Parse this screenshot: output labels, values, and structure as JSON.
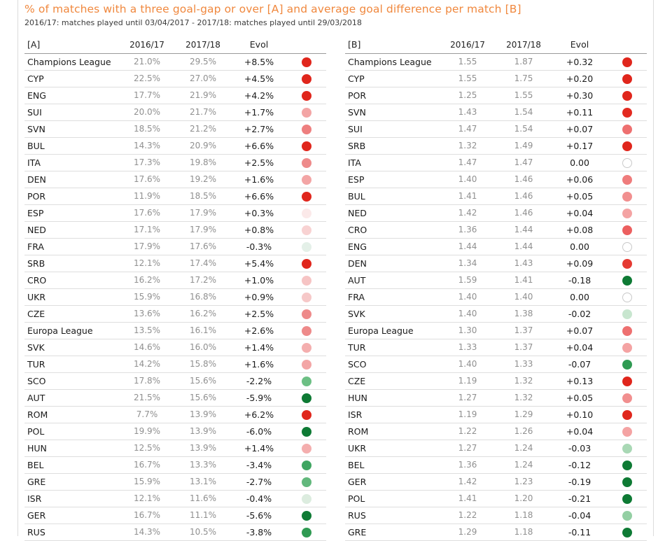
{
  "title": "% of matches with a three goal-gap or over [A] and average goal difference per match [B]",
  "subtitle": "2016/17: matches played until 03/04/2017 - 2017/18: matches played until 29/03/2018",
  "chart_data": [
    {
      "type": "table",
      "columns": [
        "[A]",
        "2016/17",
        "2017/18",
        "Evol",
        ""
      ],
      "rows": [
        {
          "name": "Champions League",
          "v1": "21.0%",
          "v2": "29.5%",
          "evol": "+8.5%",
          "color": "#e0261c"
        },
        {
          "name": "CYP",
          "v1": "22.5%",
          "v2": "27.0%",
          "evol": "+4.5%",
          "color": "#e0261c"
        },
        {
          "name": "ENG",
          "v1": "17.7%",
          "v2": "21.9%",
          "evol": "+4.2%",
          "color": "#e0261c"
        },
        {
          "name": "SUI",
          "v1": "20.0%",
          "v2": "21.7%",
          "evol": "+1.7%",
          "color": "#f3a5a5"
        },
        {
          "name": "SVN",
          "v1": "18.5%",
          "v2": "21.2%",
          "evol": "+2.7%",
          "color": "#ee7f7f"
        },
        {
          "name": "BUL",
          "v1": "14.3%",
          "v2": "20.9%",
          "evol": "+6.6%",
          "color": "#e0261c"
        },
        {
          "name": "ITA",
          "v1": "17.3%",
          "v2": "19.8%",
          "evol": "+2.5%",
          "color": "#ee8a8a"
        },
        {
          "name": "DEN",
          "v1": "17.6%",
          "v2": "19.2%",
          "evol": "+1.6%",
          "color": "#f3a5a5"
        },
        {
          "name": "POR",
          "v1": "11.9%",
          "v2": "18.5%",
          "evol": "+6.6%",
          "color": "#e0261c"
        },
        {
          "name": "ESP",
          "v1": "17.6%",
          "v2": "17.9%",
          "evol": "+0.3%",
          "color": "#fbe9e9"
        },
        {
          "name": "NED",
          "v1": "17.1%",
          "v2": "17.9%",
          "evol": "+0.8%",
          "color": "#f8d2d2"
        },
        {
          "name": "FRA",
          "v1": "17.9%",
          "v2": "17.6%",
          "evol": "-0.3%",
          "color": "#e4f0e8"
        },
        {
          "name": "SRB",
          "v1": "12.1%",
          "v2": "17.4%",
          "evol": "+5.4%",
          "color": "#e0261c"
        },
        {
          "name": "CRO",
          "v1": "16.2%",
          "v2": "17.2%",
          "evol": "+1.0%",
          "color": "#f6c4c4"
        },
        {
          "name": "UKR",
          "v1": "15.9%",
          "v2": "16.8%",
          "evol": "+0.9%",
          "color": "#f6c8c8"
        },
        {
          "name": "CZE",
          "v1": "13.6%",
          "v2": "16.2%",
          "evol": "+2.5%",
          "color": "#ee8a8a"
        },
        {
          "name": "Europa League",
          "v1": "13.5%",
          "v2": "16.1%",
          "evol": "+2.6%",
          "color": "#ee8a8a"
        },
        {
          "name": "SVK",
          "v1": "14.6%",
          "v2": "16.0%",
          "evol": "+1.4%",
          "color": "#f4aeae"
        },
        {
          "name": "TUR",
          "v1": "14.2%",
          "v2": "15.8%",
          "evol": "+1.6%",
          "color": "#f3a5a5"
        },
        {
          "name": "SCO",
          "v1": "17.8%",
          "v2": "15.6%",
          "evol": "-2.2%",
          "color": "#6cbf84"
        },
        {
          "name": "AUT",
          "v1": "21.5%",
          "v2": "15.6%",
          "evol": "-5.9%",
          "color": "#0e7a34"
        },
        {
          "name": "ROM",
          "v1": "7.7%",
          "v2": "13.9%",
          "evol": "+6.2%",
          "color": "#e0261c"
        },
        {
          "name": "POL",
          "v1": "19.9%",
          "v2": "13.9%",
          "evol": "-6.0%",
          "color": "#0e7a34"
        },
        {
          "name": "HUN",
          "v1": "12.5%",
          "v2": "13.9%",
          "evol": "+1.4%",
          "color": "#f4aeae"
        },
        {
          "name": "BEL",
          "v1": "16.7%",
          "v2": "13.3%",
          "evol": "-3.4%",
          "color": "#3fa561"
        },
        {
          "name": "GRE",
          "v1": "15.9%",
          "v2": "13.1%",
          "evol": "-2.7%",
          "color": "#62b87c"
        },
        {
          "name": "ISR",
          "v1": "12.1%",
          "v2": "11.6%",
          "evol": "-0.4%",
          "color": "#dcecdf"
        },
        {
          "name": "GER",
          "v1": "16.7%",
          "v2": "11.1%",
          "evol": "-5.6%",
          "color": "#0e7a34"
        },
        {
          "name": "RUS",
          "v1": "14.3%",
          "v2": "10.5%",
          "evol": "-3.8%",
          "color": "#2f9a52"
        }
      ]
    },
    {
      "type": "table",
      "columns": [
        "[B]",
        "2016/17",
        "2017/18",
        "Evol",
        ""
      ],
      "rows": [
        {
          "name": "Champions League",
          "v1": "1.55",
          "v2": "1.87",
          "evol": "+0.32",
          "color": "#e0261c"
        },
        {
          "name": "CYP",
          "v1": "1.55",
          "v2": "1.75",
          "evol": "+0.20",
          "color": "#e0261c"
        },
        {
          "name": "POR",
          "v1": "1.25",
          "v2": "1.55",
          "evol": "+0.30",
          "color": "#e0261c"
        },
        {
          "name": "SVN",
          "v1": "1.43",
          "v2": "1.54",
          "evol": "+0.11",
          "color": "#e32a20"
        },
        {
          "name": "SUI",
          "v1": "1.47",
          "v2": "1.54",
          "evol": "+0.07",
          "color": "#ee7070"
        },
        {
          "name": "SRB",
          "v1": "1.32",
          "v2": "1.49",
          "evol": "+0.17",
          "color": "#e0261c"
        },
        {
          "name": "ITA",
          "v1": "1.47",
          "v2": "1.47",
          "evol": "0.00",
          "color": "#ffffff"
        },
        {
          "name": "ESP",
          "v1": "1.40",
          "v2": "1.46",
          "evol": "+0.06",
          "color": "#ef7c7c"
        },
        {
          "name": "BUL",
          "v1": "1.41",
          "v2": "1.46",
          "evol": "+0.05",
          "color": "#f18f8f"
        },
        {
          "name": "NED",
          "v1": "1.42",
          "v2": "1.46",
          "evol": "+0.04",
          "color": "#f4a3a3"
        },
        {
          "name": "CRO",
          "v1": "1.36",
          "v2": "1.44",
          "evol": "+0.08",
          "color": "#ec5f5f"
        },
        {
          "name": "ENG",
          "v1": "1.44",
          "v2": "1.44",
          "evol": "0.00",
          "color": "#ffffff"
        },
        {
          "name": "DEN",
          "v1": "1.34",
          "v2": "1.43",
          "evol": "+0.09",
          "color": "#e53a32"
        },
        {
          "name": "AUT",
          "v1": "1.59",
          "v2": "1.41",
          "evol": "-0.18",
          "color": "#0e7a34"
        },
        {
          "name": "FRA",
          "v1": "1.40",
          "v2": "1.40",
          "evol": "0.00",
          "color": "#ffffff"
        },
        {
          "name": "SVK",
          "v1": "1.40",
          "v2": "1.38",
          "evol": "-0.02",
          "color": "#c8e6cf"
        },
        {
          "name": "Europa League",
          "v1": "1.30",
          "v2": "1.37",
          "evol": "+0.07",
          "color": "#ee7070"
        },
        {
          "name": "TUR",
          "v1": "1.33",
          "v2": "1.37",
          "evol": "+0.04",
          "color": "#f4a3a3"
        },
        {
          "name": "SCO",
          "v1": "1.40",
          "v2": "1.33",
          "evol": "-0.07",
          "color": "#2f9a52"
        },
        {
          "name": "CZE",
          "v1": "1.19",
          "v2": "1.32",
          "evol": "+0.13",
          "color": "#e0261c"
        },
        {
          "name": "HUN",
          "v1": "1.27",
          "v2": "1.32",
          "evol": "+0.05",
          "color": "#f18f8f"
        },
        {
          "name": "ISR",
          "v1": "1.19",
          "v2": "1.29",
          "evol": "+0.10",
          "color": "#e0261c"
        },
        {
          "name": "ROM",
          "v1": "1.22",
          "v2": "1.26",
          "evol": "+0.04",
          "color": "#f4a3a3"
        },
        {
          "name": "UKR",
          "v1": "1.27",
          "v2": "1.24",
          "evol": "-0.03",
          "color": "#a9d8b5"
        },
        {
          "name": "BEL",
          "v1": "1.36",
          "v2": "1.24",
          "evol": "-0.12",
          "color": "#0e7a34"
        },
        {
          "name": "GER",
          "v1": "1.42",
          "v2": "1.23",
          "evol": "-0.19",
          "color": "#0e7a34"
        },
        {
          "name": "POL",
          "v1": "1.41",
          "v2": "1.20",
          "evol": "-0.21",
          "color": "#0e7a34"
        },
        {
          "name": "RUS",
          "v1": "1.22",
          "v2": "1.18",
          "evol": "-0.04",
          "color": "#93cfa3"
        },
        {
          "name": "GRE",
          "v1": "1.29",
          "v2": "1.18",
          "evol": "-0.11",
          "color": "#0e7a34"
        }
      ]
    }
  ]
}
